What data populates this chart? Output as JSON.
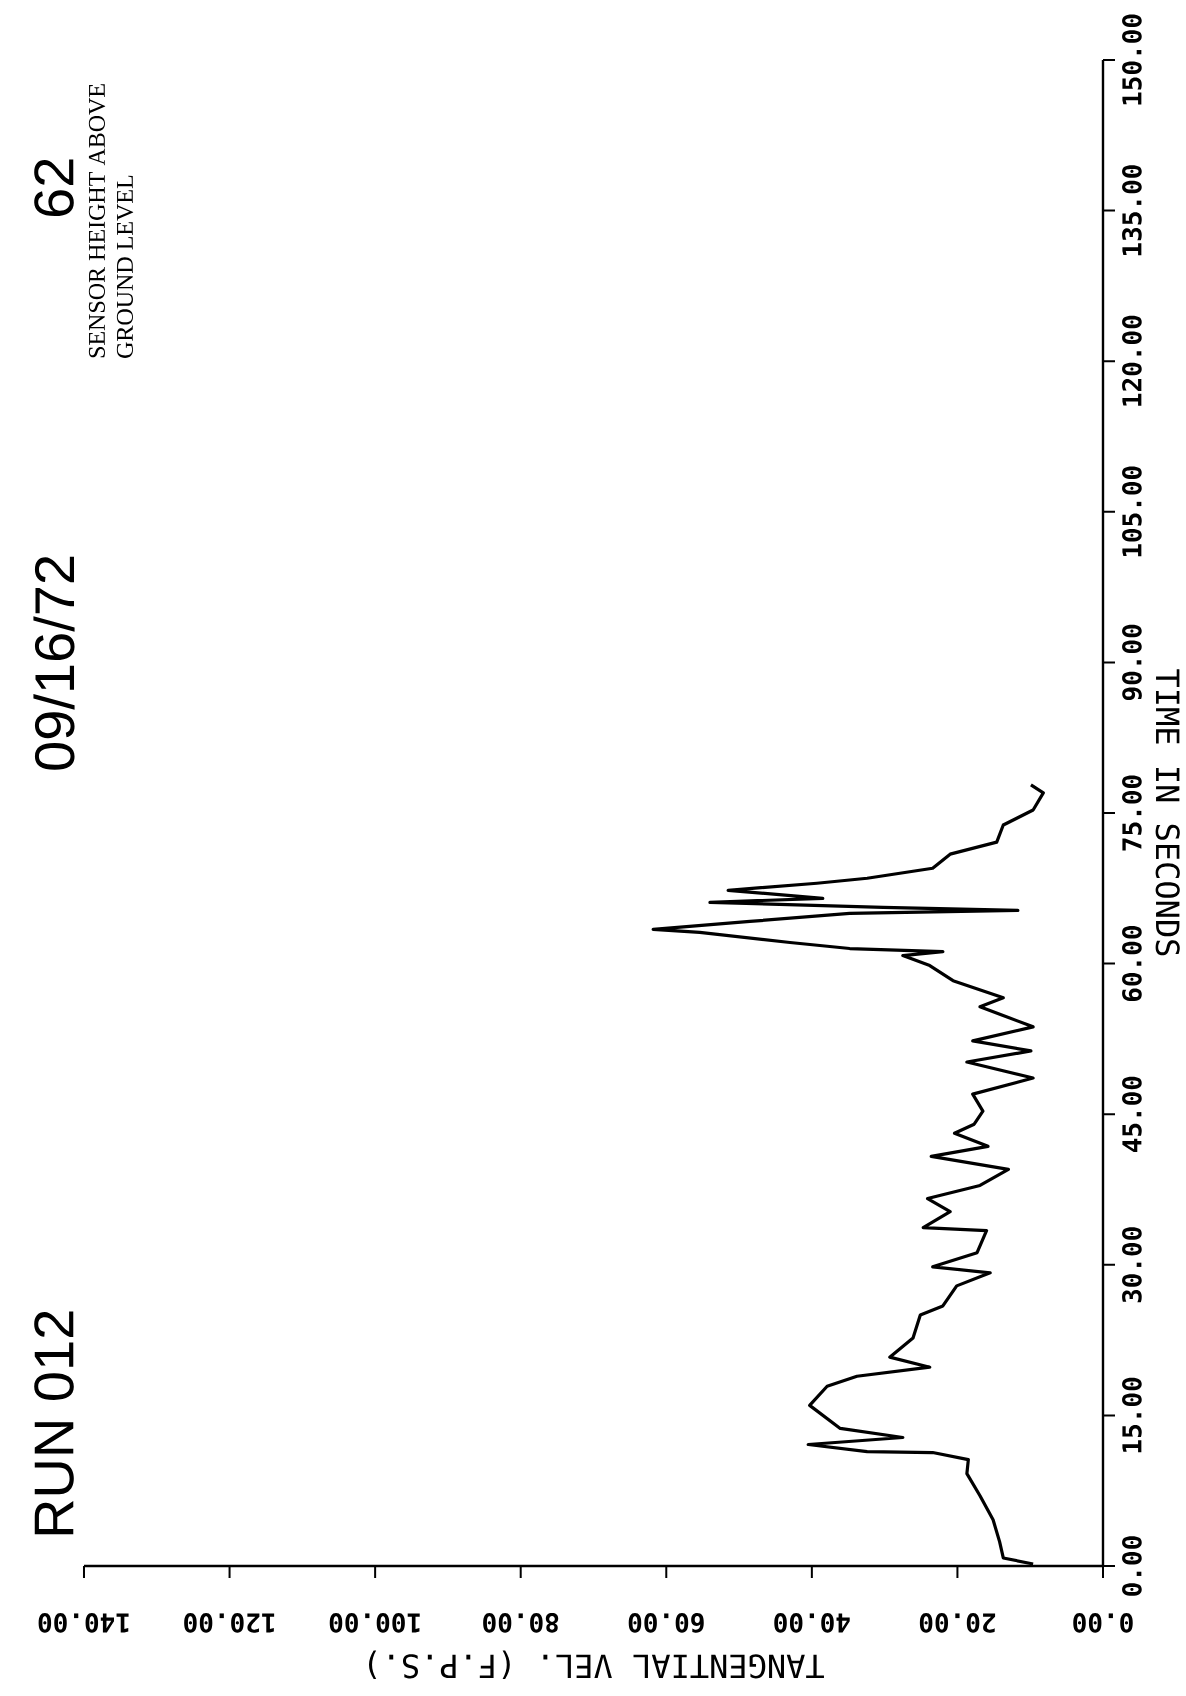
{
  "chart_data": {
    "type": "line",
    "title": "RUN 012",
    "xlabel": "TANGENTIAL VEL. (F.P.S.)",
    "ylabel": "TIME IN SECONDS",
    "annotations": [
      "09/16/72",
      "62",
      "SENSOR HEIGHT ABOVE GROUND LEVEL"
    ],
    "xlim": [
      140,
      0
    ],
    "ylim": [
      0,
      150
    ],
    "xticks": [
      {
        "value": 0,
        "label": "0.00"
      },
      {
        "value": 20,
        "label": "20.00"
      },
      {
        "value": 40,
        "label": "40.00"
      },
      {
        "value": 60,
        "label": "60.00"
      },
      {
        "value": 80,
        "label": "80.00"
      },
      {
        "value": 100,
        "label": "100.00"
      },
      {
        "value": 120,
        "label": "120.00"
      },
      {
        "value": 140,
        "label": "140.00"
      }
    ],
    "yticks": [
      {
        "value": 0,
        "label": "0.00"
      },
      {
        "value": 15,
        "label": "15.00"
      },
      {
        "value": 30,
        "label": "30.00"
      },
      {
        "value": 45,
        "label": "45.00"
      },
      {
        "value": 60,
        "label": "60.00"
      },
      {
        "value": 75,
        "label": "75.00"
      },
      {
        "value": 90,
        "label": "90.00"
      },
      {
        "value": 105,
        "label": "105.00"
      },
      {
        "value": 120,
        "label": "120.00"
      },
      {
        "value": 135,
        "label": "135.00"
      },
      {
        "value": 150,
        "label": "150.00"
      }
    ],
    "series": [
      {
        "color": "#000000",
        "x": [
          9.6,
          13.7,
          14.2,
          15.1,
          16.9,
          18.7,
          18.5,
          23.4,
          32.4,
          40.5,
          27.5,
          36.1,
          40.3,
          37.9,
          33.8,
          23.8,
          29.3,
          26.1,
          25.1,
          22.0,
          20.1,
          15.5,
          23.4,
          17.3,
          16.0,
          24.7,
          21.0,
          24.1,
          16.9,
          13.0,
          23.6,
          15.8,
          20.4,
          17.7,
          16.5,
          17.9,
          9.6,
          18.7,
          9.9,
          17.9,
          9.6,
          16.9,
          13.7,
          20.6,
          23.8,
          27.5,
          22.0,
          34.8,
          43.0,
          55.4,
          61.8,
          48.5,
          34.8,
          11.7,
          30.2,
          54.0,
          38.5,
          51.5,
          39.3,
          32.4,
          23.4,
          21.0,
          14.6,
          13.7,
          9.6,
          8.2,
          9.9
        ],
        "values": [
          0.2,
          0.8,
          2.4,
          4.6,
          7.0,
          9.2,
          10.6,
          11.3,
          11.4,
          12.1,
          12.8,
          13.7,
          16.0,
          17.9,
          18.9,
          19.8,
          20.8,
          22.7,
          25.0,
          25.9,
          27.9,
          29.2,
          29.8,
          31.2,
          33.4,
          33.7,
          35.3,
          36.6,
          37.9,
          39.5,
          40.8,
          41.8,
          43.1,
          44.0,
          45.3,
          47.0,
          48.6,
          50.2,
          51.3,
          52.3,
          53.7,
          55.7,
          56.6,
          58.3,
          59.8,
          60.8,
          61.2,
          61.5,
          62.1,
          63.1,
          63.4,
          64.2,
          65.0,
          65.3,
          65.6,
          66.1,
          66.5,
          67.3,
          68.0,
          68.5,
          69.5,
          70.9,
          72.1,
          73.8,
          75.3,
          77.0,
          77.8
        ]
      }
    ]
  }
}
